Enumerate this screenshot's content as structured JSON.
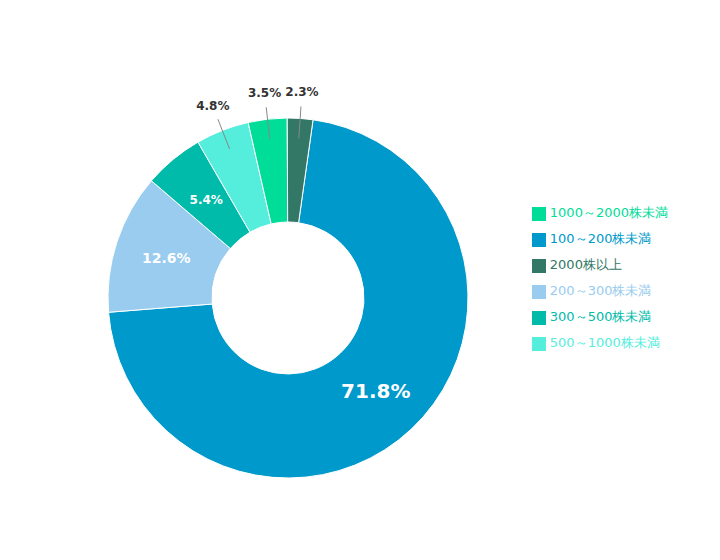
{
  "chart_data": {
    "type": "donut",
    "categories": [
      "100～200株未満",
      "200～300株未満",
      "300～500株未満",
      "500～1000株未満",
      "1000～2000株未満",
      "2000株以上"
    ],
    "values": [
      71.8,
      12.6,
      5.4,
      4.8,
      3.5,
      2.3
    ],
    "value_labels": [
      "71.8%",
      "12.6%",
      "5.4%",
      "4.8%",
      "3.5%",
      "2.3%"
    ],
    "colors": [
      "#0099CC",
      "#99CCEE",
      "#00BBAA",
      "#55EEDD",
      "#00DD99",
      "#337766"
    ],
    "data_labels": true,
    "legend": "right"
  }
}
